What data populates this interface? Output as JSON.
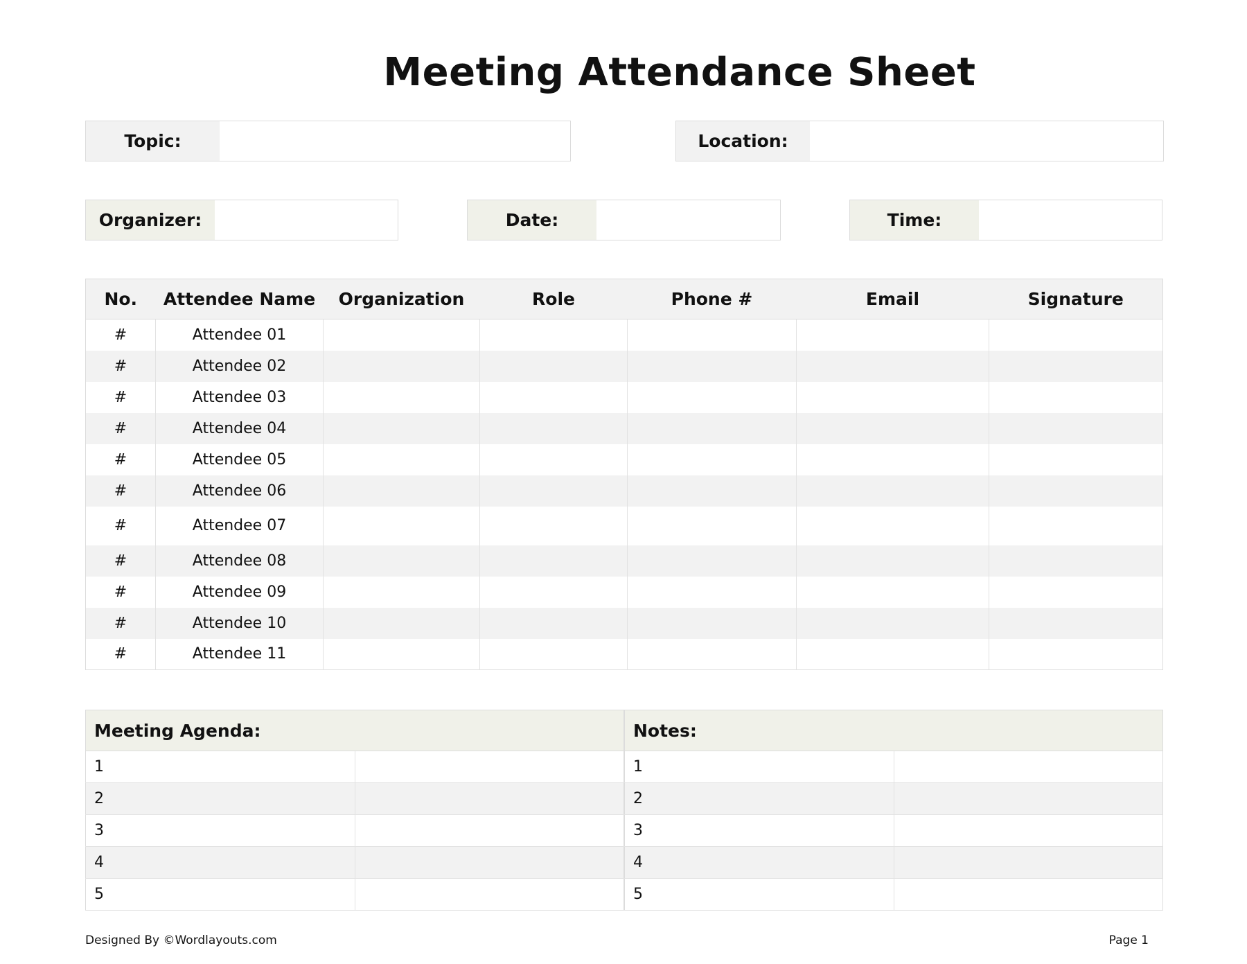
{
  "title": "Meeting Attendance Sheet",
  "fields": {
    "topic": "Topic:",
    "location": "Location:",
    "organizer": "Organizer:",
    "date": "Date:",
    "time": "Time:"
  },
  "table": {
    "headers": [
      "No.",
      "Attendee Name",
      "Organization",
      "Role",
      "Phone #",
      "Email",
      "Signature"
    ],
    "rows": [
      {
        "no": "#",
        "name": "Attendee 01"
      },
      {
        "no": "#",
        "name": "Attendee 02"
      },
      {
        "no": "#",
        "name": "Attendee 03"
      },
      {
        "no": "#",
        "name": "Attendee 04"
      },
      {
        "no": "#",
        "name": "Attendee 05"
      },
      {
        "no": "#",
        "name": "Attendee 06"
      },
      {
        "no": "#",
        "name": "Attendee 07"
      },
      {
        "no": "#",
        "name": "Attendee 08"
      },
      {
        "no": "#",
        "name": "Attendee 09"
      },
      {
        "no": "#",
        "name": "Attendee 10"
      },
      {
        "no": "#",
        "name": "Attendee 11"
      }
    ]
  },
  "agenda": {
    "title": "Meeting Agenda:",
    "items": [
      "1",
      "2",
      "3",
      "4",
      "5"
    ]
  },
  "notes": {
    "title": "Notes:",
    "items": [
      "1",
      "2",
      "3",
      "4",
      "5"
    ]
  },
  "footer": {
    "credit": "Designed By ©Wordlayouts.com",
    "page": "Page 1"
  }
}
